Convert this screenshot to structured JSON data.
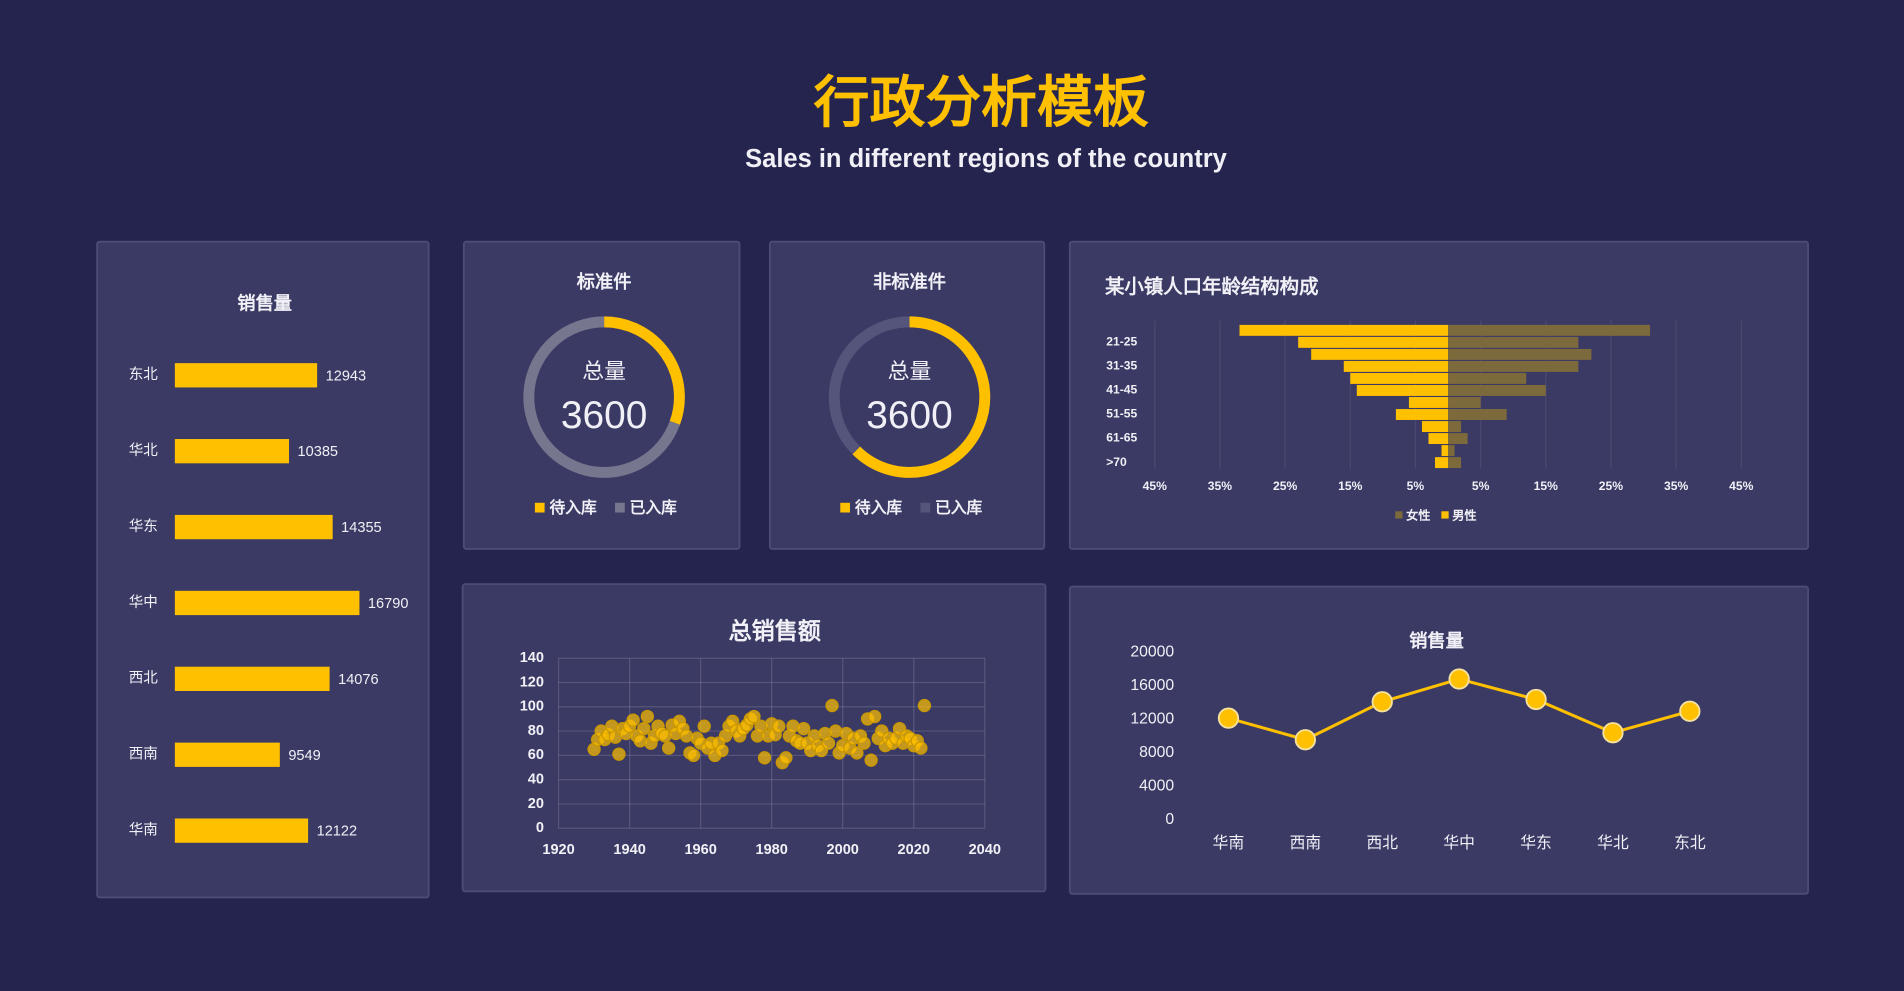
{
  "header": {
    "title": "行政分析模板",
    "subtitle": "Sales in different regions of the country"
  },
  "chart_data": [
    {
      "type": "hbar",
      "title": "销售量",
      "categories": [
        "东北",
        "华北",
        "华东",
        "华中",
        "西北",
        "西南",
        "华南"
      ],
      "values": [
        12943,
        10385,
        14355,
        16790,
        14076,
        9549,
        12122
      ],
      "color": "#ffc000"
    },
    {
      "type": "donut",
      "title": "标准件",
      "center_label": "总量",
      "total": 3600,
      "categories": [
        "待入库",
        "已入库"
      ],
      "values": [
        1100,
        2500
      ],
      "colors": [
        "#ffc000",
        "#77768f"
      ]
    },
    {
      "type": "donut",
      "title": "非标准件",
      "center_label": "总量",
      "total": 3600,
      "categories": [
        "待入库",
        "已入库"
      ],
      "values": [
        2250,
        1350
      ],
      "colors": [
        "#ffc000",
        "#55547a"
      ]
    },
    {
      "type": "pyramid",
      "title": "某小镇人口年龄结构构成",
      "categories": [
        null,
        "21-25",
        null,
        "31-35",
        null,
        "41-45",
        null,
        "51-55",
        null,
        "61-65",
        null,
        ">70"
      ],
      "series": [
        {
          "name": "女性",
          "color": "#7d6a3c",
          "values": [
            31,
            20,
            22,
            20,
            12,
            15,
            5,
            9,
            2,
            3,
            1,
            2
          ]
        },
        {
          "name": "男性",
          "color": "#ffc000",
          "values": [
            -32,
            -23,
            -21,
            -16,
            -15,
            -14,
            -6,
            -8,
            -4,
            -3,
            -1,
            -2
          ]
        }
      ],
      "xlim": [
        -45,
        45
      ],
      "xticks": [
        {
          "value": -45,
          "label": "45%"
        },
        {
          "value": -35,
          "label": "35%"
        },
        {
          "value": -25,
          "label": "25%"
        },
        {
          "value": -15,
          "label": "15%"
        },
        {
          "value": -5,
          "label": "5%"
        },
        {
          "value": 5,
          "label": "5%"
        },
        {
          "value": 15,
          "label": "15%"
        },
        {
          "value": 25,
          "label": "25%"
        },
        {
          "value": 35,
          "label": "35%"
        },
        {
          "value": 45,
          "label": "45%"
        }
      ],
      "grid": true
    },
    {
      "type": "scatter",
      "title": "总销售额",
      "color": "#ffc000",
      "x": [
        1930,
        1931,
        1932,
        1933,
        1934,
        1935,
        1936,
        1937,
        1938,
        1939,
        1940,
        1941,
        1942,
        1943,
        1944,
        1945,
        1946,
        1947,
        1948,
        1949,
        1950,
        1951,
        1952,
        1953,
        1954,
        1955,
        1956,
        1957,
        1958,
        1959,
        1960,
        1961,
        1962,
        1963,
        1964,
        1965,
        1966,
        1967,
        1968,
        1969,
        1970,
        1971,
        1972,
        1973,
        1974,
        1975,
        1976,
        1977,
        1978,
        1979,
        1980,
        1981,
        1982,
        1983,
        1984,
        1985,
        1986,
        1987,
        1988,
        1989,
        1990,
        1991,
        1992,
        1993,
        1994,
        1995,
        1996,
        1997,
        1998,
        1999,
        2000,
        2001,
        2002,
        2003,
        2004,
        2005,
        2006,
        2007,
        2008,
        2009,
        2010,
        2011,
        2012,
        2013,
        2014,
        2015,
        2016,
        2017,
        2018,
        2019,
        2020,
        2021,
        2022,
        2023
      ],
      "values": [
        65,
        73,
        80,
        73,
        77,
        84,
        75,
        61,
        82,
        78,
        84,
        89,
        76,
        72,
        82,
        92,
        70,
        76,
        84,
        78,
        76,
        66,
        85,
        78,
        88,
        82,
        76,
        62,
        60,
        74,
        70,
        84,
        66,
        70,
        60,
        70,
        64,
        76,
        84,
        88,
        80,
        76,
        82,
        85,
        90,
        92,
        76,
        84,
        58,
        76,
        86,
        77,
        84,
        54,
        58,
        76,
        84,
        72,
        70,
        82,
        70,
        64,
        76,
        68,
        64,
        78,
        70,
        101,
        80,
        62,
        68,
        78,
        66,
        74,
        62,
        76,
        70,
        90,
        56,
        92,
        74,
        80,
        68,
        74,
        70,
        74,
        82,
        70,
        76,
        74,
        68,
        72,
        66,
        101
      ],
      "xlim": [
        1920,
        2040
      ],
      "xticks": [
        1920,
        1940,
        1960,
        1980,
        2000,
        2020,
        2040
      ],
      "ylim": [
        0,
        140
      ],
      "yticks": [
        0,
        20,
        40,
        60,
        80,
        100,
        120,
        140
      ],
      "grid": true
    },
    {
      "type": "line",
      "title": "销售量",
      "color": "#ffc000",
      "categories": [
        "华南",
        "西南",
        "西北",
        "华中",
        "华东",
        "华北",
        "东北"
      ],
      "values": [
        12122,
        9549,
        14076,
        16790,
        14355,
        10385,
        12943
      ],
      "ylim": [
        0,
        20000
      ],
      "yticks": [
        0,
        4000,
        8000,
        12000,
        16000,
        20000
      ]
    }
  ]
}
